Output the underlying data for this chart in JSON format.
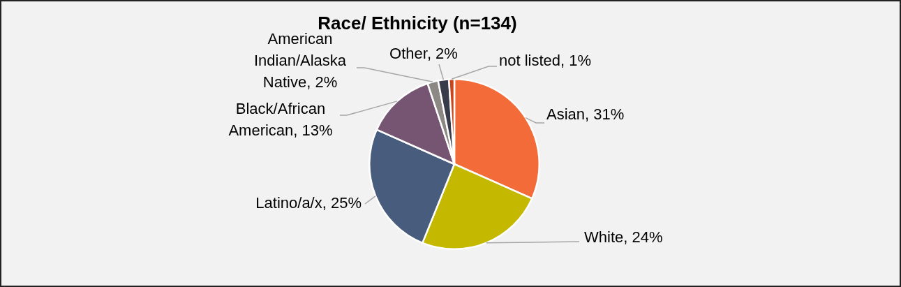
{
  "chart_data": {
    "type": "pie",
    "title": "Race/ Ethnicity (n=134)",
    "categories": [
      "Asian",
      "White",
      "Latino/a/x",
      "Black/African American",
      "American Indian/Alaska Native",
      "Other",
      "not listed"
    ],
    "values": [
      31,
      24,
      25,
      13,
      2,
      2,
      1
    ],
    "value_labels": [
      "31%",
      "24%",
      "25%",
      "13%",
      "2%",
      "2%",
      "1%"
    ],
    "colors": [
      "#f26b38",
      "#c4b800",
      "#485c7e",
      "#765572",
      "#8c8884",
      "#383c4a",
      "#c9431b"
    ],
    "legend": false
  }
}
